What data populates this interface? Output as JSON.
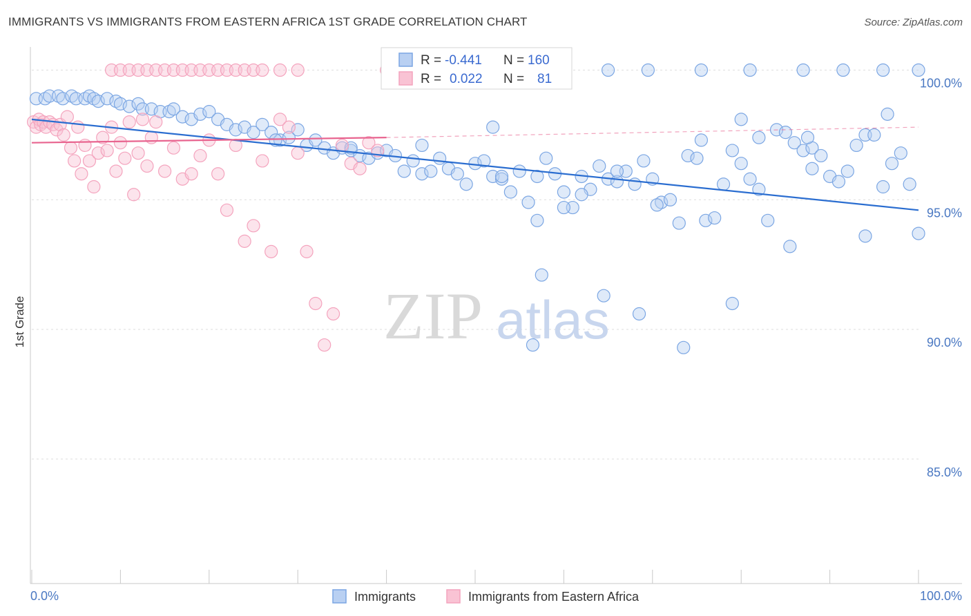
{
  "title": "IMMIGRANTS VS IMMIGRANTS FROM EASTERN AFRICA 1ST GRADE CORRELATION CHART",
  "source": "Source: ZipAtlas.com",
  "watermark": {
    "zip": "ZIP",
    "atlas": "atlas"
  },
  "chart_data": {
    "type": "scatter",
    "ylabel": "1st Grade",
    "x_tick_labels": [
      "0.0%",
      "100.0%"
    ],
    "y_tick_labels": [
      "100.0%",
      "95.0%",
      "90.0%",
      "85.0%"
    ],
    "y_ticks": [
      100,
      95,
      90,
      85
    ],
    "xlim": [
      0,
      100
    ],
    "ylim": [
      80.2,
      100.6
    ],
    "grid": true,
    "legend_position": "bottom",
    "colors": {
      "immigrants": "#7ba6e3",
      "immigrants_line": "#2a6dd0",
      "eastern_africa": "#f4a3bd",
      "eastern_africa_line": "#e8648f"
    },
    "stats": [
      {
        "r_label": "R =",
        "r_value": "-0.441",
        "n_label": "N =",
        "n_value": "160"
      },
      {
        "r_label": "R =",
        "r_value": "0.022",
        "n_label": "N =",
        "n_value": "81"
      }
    ],
    "series": [
      {
        "name": "Immigrants",
        "trend": {
          "x": [
            0,
            100
          ],
          "y": [
            98.1,
            94.6
          ]
        },
        "points": [
          [
            0.5,
            98.9
          ],
          [
            1.5,
            98.9
          ],
          [
            2,
            99.0
          ],
          [
            3,
            99.0
          ],
          [
            3.5,
            98.9
          ],
          [
            4.5,
            99.0
          ],
          [
            5,
            98.9
          ],
          [
            6,
            98.9
          ],
          [
            6.5,
            99.0
          ],
          [
            7,
            98.9
          ],
          [
            7.5,
            98.8
          ],
          [
            8.5,
            98.9
          ],
          [
            9.5,
            98.8
          ],
          [
            10,
            98.7
          ],
          [
            11,
            98.6
          ],
          [
            12,
            98.7
          ],
          [
            12.5,
            98.5
          ],
          [
            13.5,
            98.5
          ],
          [
            14.5,
            98.4
          ],
          [
            15.5,
            98.4
          ],
          [
            16,
            98.5
          ],
          [
            17,
            98.2
          ],
          [
            18,
            98.1
          ],
          [
            19,
            98.3
          ],
          [
            20,
            98.4
          ],
          [
            21,
            98.1
          ],
          [
            22,
            97.9
          ],
          [
            23,
            97.7
          ],
          [
            24,
            97.8
          ],
          [
            25,
            97.6
          ],
          [
            26,
            97.9
          ],
          [
            27,
            97.6
          ],
          [
            28,
            97.3
          ],
          [
            29,
            97.4
          ],
          [
            30,
            97.7
          ],
          [
            31,
            97.1
          ],
          [
            32,
            97.3
          ],
          [
            33,
            97.0
          ],
          [
            34,
            96.8
          ],
          [
            35,
            97.0
          ],
          [
            36,
            96.9
          ],
          [
            37,
            96.7
          ],
          [
            38,
            96.6
          ],
          [
            39,
            96.8
          ],
          [
            40,
            96.9
          ],
          [
            41,
            96.7
          ],
          [
            42,
            96.1
          ],
          [
            43,
            96.5
          ],
          [
            44,
            96.0
          ],
          [
            45,
            96.1
          ],
          [
            46,
            96.6
          ],
          [
            47,
            96.2
          ],
          [
            48,
            96.0
          ],
          [
            49,
            95.6
          ],
          [
            50,
            96.4
          ],
          [
            51,
            96.5
          ],
          [
            52,
            95.9
          ],
          [
            53,
            95.8
          ],
          [
            54,
            95.3
          ],
          [
            55,
            96.1
          ],
          [
            56,
            94.9
          ],
          [
            57,
            94.2
          ],
          [
            58,
            96.6
          ],
          [
            59,
            96.0
          ],
          [
            60,
            95.3
          ],
          [
            61,
            94.7
          ],
          [
            62,
            95.9
          ],
          [
            63,
            95.4
          ],
          [
            64,
            96.3
          ],
          [
            65,
            95.8
          ],
          [
            66,
            95.7
          ],
          [
            67,
            96.1
          ],
          [
            68,
            95.6
          ],
          [
            69,
            96.5
          ],
          [
            70,
            95.8
          ],
          [
            71,
            94.9
          ],
          [
            72,
            95.0
          ],
          [
            73,
            94.1
          ],
          [
            74,
            96.7
          ],
          [
            75,
            96.6
          ],
          [
            76,
            94.2
          ],
          [
            77,
            94.3
          ],
          [
            78,
            95.6
          ],
          [
            79,
            96.9
          ],
          [
            80,
            96.4
          ],
          [
            81,
            95.8
          ],
          [
            82,
            95.4
          ],
          [
            83,
            94.2
          ],
          [
            84,
            97.7
          ],
          [
            85,
            97.6
          ],
          [
            86,
            97.2
          ],
          [
            87,
            96.9
          ],
          [
            88,
            97.0
          ],
          [
            89,
            96.7
          ],
          [
            90,
            95.9
          ],
          [
            91,
            95.7
          ],
          [
            92,
            96.1
          ],
          [
            93,
            97.1
          ],
          [
            94,
            97.5
          ],
          [
            95,
            97.5
          ],
          [
            96,
            95.5
          ],
          [
            97,
            96.4
          ],
          [
            98,
            96.8
          ],
          [
            99,
            95.6
          ],
          [
            100,
            93.7
          ],
          [
            27.5,
            97.3
          ],
          [
            36,
            97.0
          ],
          [
            44,
            97.1
          ],
          [
            53,
            95.9
          ],
          [
            62,
            95.2
          ],
          [
            75.5,
            97.3
          ],
          [
            82,
            97.4
          ],
          [
            87.5,
            97.4
          ],
          [
            96.5,
            98.3
          ],
          [
            65,
            100.0
          ],
          [
            69.5,
            100.0
          ],
          [
            75.5,
            100.0
          ],
          [
            81,
            100.0
          ],
          [
            87,
            100.0
          ],
          [
            91.5,
            100.0
          ],
          [
            96,
            100.0
          ],
          [
            100,
            100.0
          ],
          [
            52,
            97.8
          ],
          [
            57,
            95.9
          ],
          [
            60,
            94.7
          ],
          [
            66,
            96.1
          ],
          [
            70.5,
            94.8
          ],
          [
            80,
            98.1
          ],
          [
            88,
            96.2
          ],
          [
            94,
            93.6
          ],
          [
            85.5,
            93.2
          ],
          [
            57.5,
            92.1
          ],
          [
            64.5,
            91.3
          ],
          [
            68.5,
            90.6
          ],
          [
            56.5,
            89.4
          ],
          [
            79,
            91.0
          ],
          [
            73.5,
            89.3
          ]
        ]
      },
      {
        "name": "Immigrants from Eastern Africa",
        "trend": {
          "x": [
            0,
            40,
            100
          ],
          "y": [
            97.2,
            97.4,
            97.8
          ]
        },
        "points": [
          [
            0.2,
            98.0
          ],
          [
            0.5,
            97.8
          ],
          [
            0.8,
            98.1
          ],
          [
            1,
            97.9
          ],
          [
            1.3,
            98.0
          ],
          [
            1.6,
            97.8
          ],
          [
            2,
            98.0
          ],
          [
            2.4,
            97.9
          ],
          [
            2.8,
            97.7
          ],
          [
            3.2,
            97.9
          ],
          [
            3.6,
            97.5
          ],
          [
            4,
            98.2
          ],
          [
            4.4,
            97.0
          ],
          [
            4.8,
            96.5
          ],
          [
            5.2,
            97.8
          ],
          [
            5.6,
            96.0
          ],
          [
            6,
            97.1
          ],
          [
            6.5,
            96.5
          ],
          [
            7,
            95.5
          ],
          [
            7.5,
            96.8
          ],
          [
            8,
            97.4
          ],
          [
            8.5,
            96.9
          ],
          [
            9,
            97.8
          ],
          [
            9.5,
            96.1
          ],
          [
            10,
            97.2
          ],
          [
            10.5,
            96.6
          ],
          [
            11,
            98.0
          ],
          [
            11.5,
            95.2
          ],
          [
            12,
            96.8
          ],
          [
            12.5,
            98.1
          ],
          [
            13,
            96.3
          ],
          [
            13.5,
            97.4
          ],
          [
            14,
            98.0
          ],
          [
            15,
            96.1
          ],
          [
            16,
            97.0
          ],
          [
            17,
            95.8
          ],
          [
            18,
            96.0
          ],
          [
            19,
            96.7
          ],
          [
            20,
            97.3
          ],
          [
            21,
            96.0
          ],
          [
            22,
            94.6
          ],
          [
            23,
            97.1
          ],
          [
            24,
            93.4
          ],
          [
            25,
            94.0
          ],
          [
            26,
            96.5
          ],
          [
            27,
            93.0
          ],
          [
            28,
            98.1
          ],
          [
            29,
            97.8
          ],
          [
            30,
            96.8
          ],
          [
            31,
            93.0
          ],
          [
            32,
            91.0
          ],
          [
            33,
            89.4
          ],
          [
            34,
            90.6
          ],
          [
            35,
            97.1
          ],
          [
            36,
            96.4
          ],
          [
            37,
            96.2
          ],
          [
            38,
            97.2
          ],
          [
            39,
            96.9
          ],
          [
            40,
            100.0
          ],
          [
            9,
            100.0
          ],
          [
            10,
            100.0
          ],
          [
            11,
            100.0
          ],
          [
            12,
            100.0
          ],
          [
            13,
            100.0
          ],
          [
            14,
            100.0
          ],
          [
            15,
            100.0
          ],
          [
            16,
            100.0
          ],
          [
            17,
            100.0
          ],
          [
            18,
            100.0
          ],
          [
            19,
            100.0
          ],
          [
            20,
            100.0
          ],
          [
            21,
            100.0
          ],
          [
            22,
            100.0
          ],
          [
            23,
            100.0
          ],
          [
            24,
            100.0
          ],
          [
            25,
            100.0
          ],
          [
            26,
            100.0
          ],
          [
            28,
            100.0
          ],
          [
            30,
            100.0
          ]
        ]
      }
    ]
  },
  "legend": {
    "items": [
      "Immigrants",
      "Immigrants from Eastern Africa"
    ]
  }
}
